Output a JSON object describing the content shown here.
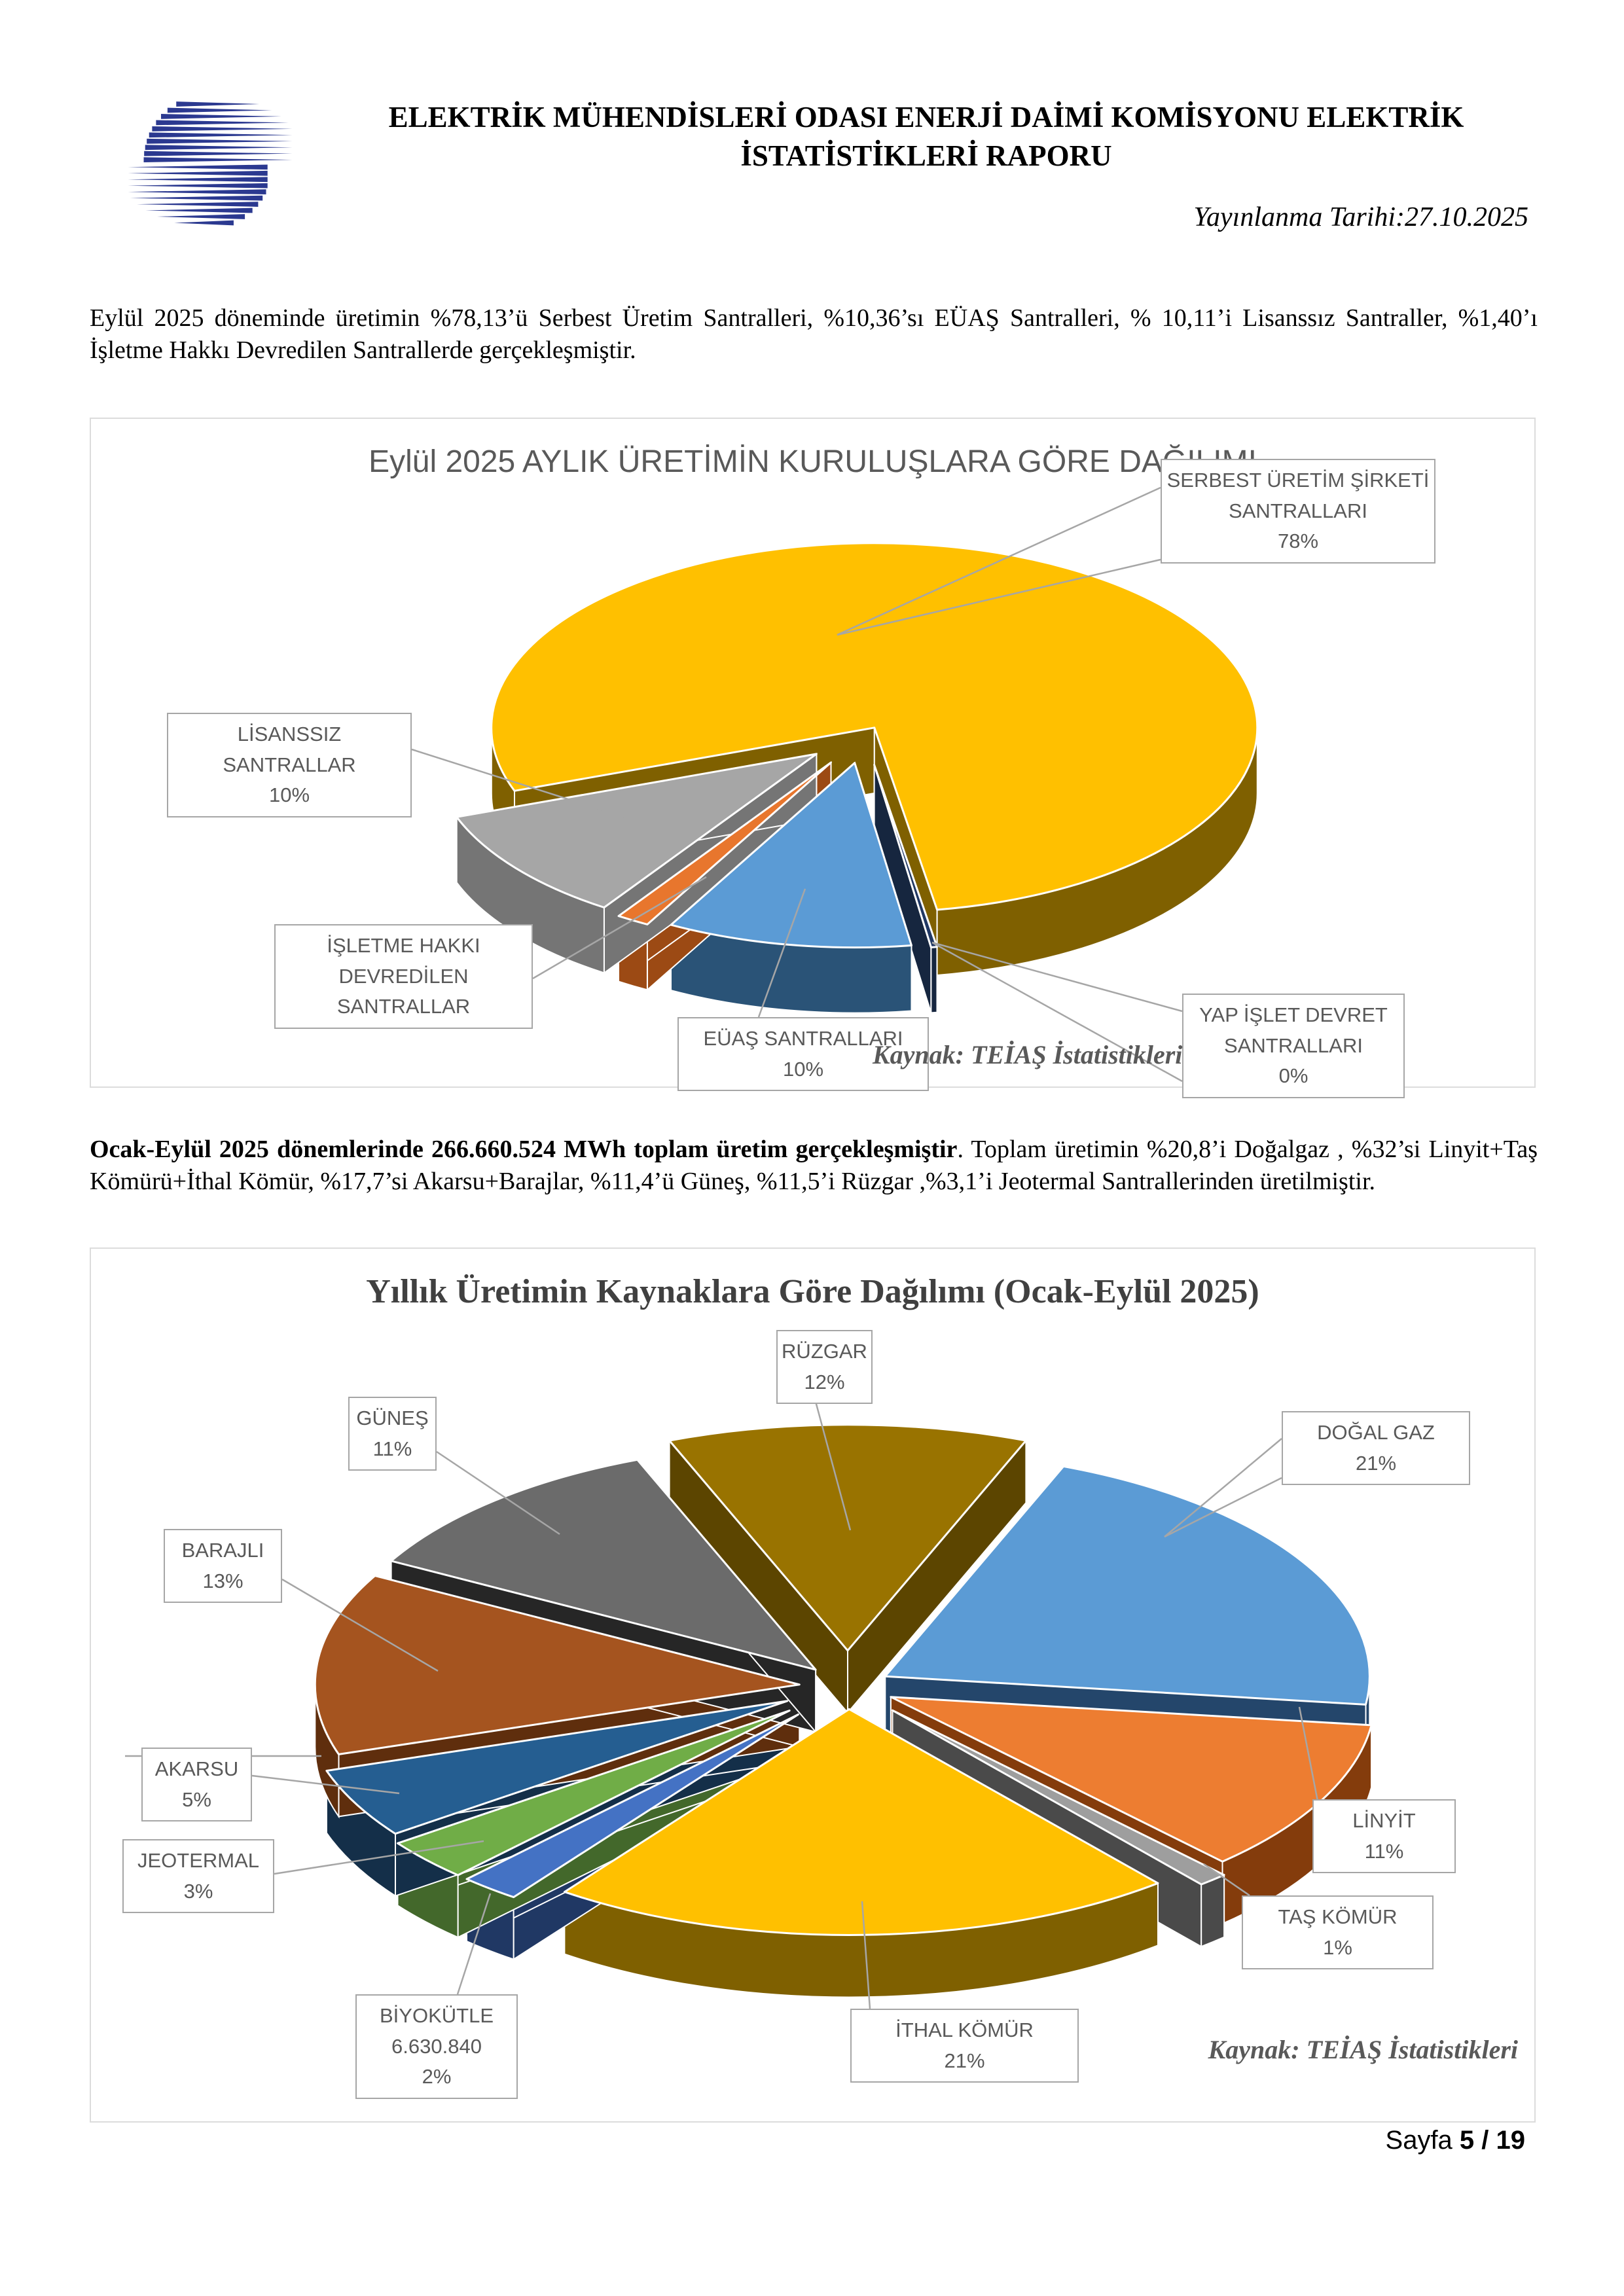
{
  "header": {
    "logo_color": "#2B3990",
    "title_line1": "ELEKTRİK MÜHENDİSLERİ ODASI ENERJİ DAİMİ KOMİSYONU ELEKTRİK",
    "title_line2": "İSTATİSTİKLERİ RAPORU",
    "publish_date": "Yayınlanma Tarihi:27.10.2025"
  },
  "intro_paragraph": "Eylül 2025 döneminde üretimin %78,13’ü Serbest Üretim Santralleri, %10,36’sı EÜAŞ Santralleri, % 10,11’i Lisanssız Santraller, %1,40’ı İşletme Hakkı Devredilen Santrallerde gerçekleşmiştir.",
  "summary_paragraph": {
    "bold": "Ocak-Eylül 2025 dönemlerinde 266.660.524 MWh toplam üretim gerçekleşmiştir",
    "rest": ". Toplam üretimin %20,8’i Doğalgaz , %32’si Linyit+Taş Kömürü+İthal Kömür, %17,7’si Akarsu+Barajlar, %11,4’ü Güneş, %11,5’i Rüzgar ,%3,1’i Jeotermal Santrallerinden üretilmiştir."
  },
  "footer": {
    "label": "Sayfa ",
    "page_number": "5 / 19"
  },
  "chart_data": [
    {
      "type": "pie",
      "pie_style": "3d-exploded",
      "title": "Eylül 2025 AYLIK ÜRETİMİN KURULUŞLARA GÖRE DAĞILIMI",
      "source": "Kaynak: TEİAŞ İstatistikleri",
      "legend_position": "callouts",
      "slices": [
        {
          "label": "SERBEST ÜRETİM ŞİRKETİ SANTRALLARI",
          "callout_lines": [
            "SERBEST ÜRETİM ŞİRKETİ",
            "SANTRALLARI",
            "78%"
          ],
          "value": 78.13,
          "display_pct": "78%",
          "color": "#FFC000",
          "side_color": "#7F6000"
        },
        {
          "label": "YAP İŞLET DEVRET SANTRALLARI",
          "callout_lines": [
            "YAP İŞLET DEVRET",
            "SANTRALLARI",
            "0%"
          ],
          "value": 0,
          "display_pct": "0%",
          "color": "#203864",
          "side_color": "#16263F"
        },
        {
          "label": "EÜAŞ SANTRALLARI",
          "callout_lines": [
            "EÜAŞ SANTRALLARI",
            "10%"
          ],
          "value": 10.36,
          "display_pct": "10%",
          "color": "#5B9BD5",
          "side_color": "#2A5377"
        },
        {
          "label": "İŞLETME HAKKI DEVREDİLEN SANTRALLAR",
          "callout_lines": [
            "İŞLETME HAKKI",
            "DEVREDİLEN",
            "SANTRALLAR"
          ],
          "value": 1.4,
          "display_pct": "1%",
          "color": "#E8762D",
          "side_color": "#9C4A14"
        },
        {
          "label": "LİSANSSIZ SANTRALLAR",
          "callout_lines": [
            "LİSANSSIZ SANTRALLAR",
            "10%"
          ],
          "value": 10.11,
          "display_pct": "10%",
          "color": "#A6A6A6",
          "side_color": "#757575"
        }
      ]
    },
    {
      "type": "pie",
      "pie_style": "3d-exploded",
      "title": "Yıllık Üretimin Kaynaklara Göre Dağılımı (Ocak-Eylül 2025)",
      "source": "Kaynak: TEİAŞ İstatistikleri",
      "legend_position": "callouts",
      "slices": [
        {
          "label": "RÜZGAR",
          "callout_lines": [
            "RÜZGAR",
            "12%"
          ],
          "value": 12,
          "display_pct": "12%",
          "color": "#997300",
          "side_color": "#5C4500"
        },
        {
          "label": "DOĞAL GAZ",
          "callout_lines": [
            "DOĞAL GAZ",
            "21%"
          ],
          "value": 21,
          "display_pct": "21%",
          "color": "#5B9BD5",
          "side_color": "#24466B"
        },
        {
          "label": "LİNYİT",
          "callout_lines": [
            "LİNYİT",
            "11%"
          ],
          "value": 11,
          "display_pct": "11%",
          "color": "#ED7D31",
          "side_color": "#843C0C"
        },
        {
          "label": "TAŞ KÖMÜR",
          "callout_lines": [
            "TAŞ KÖMÜR",
            "1%"
          ],
          "value": 1,
          "display_pct": "1%",
          "color": "#9E9E9E",
          "side_color": "#4A4A4A"
        },
        {
          "label": "İTHAL KÖMÜR",
          "callout_lines": [
            "İTHAL KÖMÜR",
            "21%"
          ],
          "value": 21,
          "display_pct": "21%",
          "color": "#FFC000",
          "side_color": "#7F6000"
        },
        {
          "label": "BİYOKÜTLE",
          "callout_lines": [
            "BİYOKÜTLE",
            "6.630.840",
            "2%"
          ],
          "value": 2,
          "display_pct": "2%",
          "annotation": "6.630.840",
          "color": "#4472C4",
          "side_color": "#203864"
        },
        {
          "label": "JEOTERMAL",
          "callout_lines": [
            "JEOTERMAL",
            "3%"
          ],
          "value": 3,
          "display_pct": "3%",
          "color": "#70AD47",
          "side_color": "#43682B"
        },
        {
          "label": "AKARSU",
          "callout_lines": [
            "AKARSU",
            "5%"
          ],
          "value": 5,
          "display_pct": "5%",
          "color": "#255E91",
          "side_color": "#142F49"
        },
        {
          "label": "BARAJLI",
          "callout_lines": [
            "BARAJLI",
            "13%"
          ],
          "value": 13,
          "display_pct": "13%",
          "color": "#A5541F",
          "side_color": "#5F2E0D"
        },
        {
          "label": "GÜNEŞ",
          "callout_lines": [
            "GÜNEŞ",
            "11%"
          ],
          "value": 11,
          "display_pct": "11%",
          "color": "#6B6B6B",
          "side_color": "#262626"
        }
      ]
    }
  ]
}
